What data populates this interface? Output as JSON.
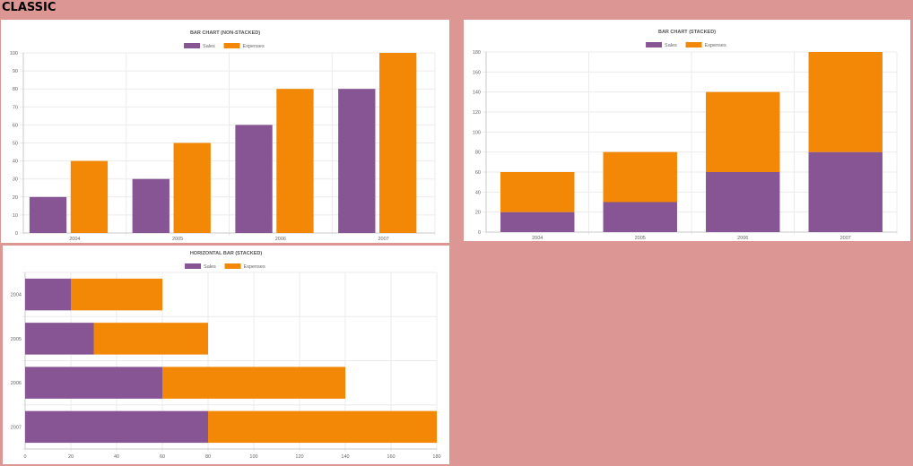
{
  "page": {
    "title": "CLASSIC"
  },
  "colors": {
    "sales": "#875594",
    "expenses": "#f28806",
    "grid": "#ebebeb",
    "axis": "#c8c8c8",
    "text": "#666666",
    "title": "#555555"
  },
  "chart_data": [
    {
      "type": "bar",
      "title": "BAR CHART (NON-STACKED)",
      "stacked": false,
      "orientation": "vertical",
      "categories": [
        "2004",
        "2005",
        "2006",
        "2007"
      ],
      "series": [
        {
          "name": "Sales",
          "values": [
            20,
            30,
            60,
            80
          ]
        },
        {
          "name": "Expenses",
          "values": [
            40,
            50,
            80,
            100
          ]
        }
      ],
      "ylim": [
        0,
        100
      ],
      "ticks": [
        0,
        10,
        20,
        30,
        40,
        50,
        60,
        70,
        80,
        90,
        100
      ],
      "legend": "top",
      "grid": true
    },
    {
      "type": "bar",
      "title": "BAR CHART (STACKED)",
      "stacked": true,
      "orientation": "vertical",
      "categories": [
        "2004",
        "2005",
        "2006",
        "2007"
      ],
      "series": [
        {
          "name": "Sales",
          "values": [
            20,
            30,
            60,
            80
          ]
        },
        {
          "name": "Expenses",
          "values": [
            40,
            50,
            80,
            100
          ]
        }
      ],
      "ylim": [
        0,
        180
      ],
      "ticks": [
        0,
        20,
        40,
        60,
        80,
        100,
        120,
        140,
        160,
        180
      ],
      "legend": "top",
      "grid": true
    },
    {
      "type": "bar",
      "title": "HORIZONTAL BAR (STACKED)",
      "stacked": true,
      "orientation": "horizontal",
      "categories": [
        "2004",
        "2005",
        "2006",
        "2007"
      ],
      "series": [
        {
          "name": "Sales",
          "values": [
            20,
            30,
            60,
            80
          ]
        },
        {
          "name": "Expenses",
          "values": [
            40,
            50,
            80,
            100
          ]
        }
      ],
      "xlim": [
        0,
        180
      ],
      "ticks": [
        0,
        20,
        40,
        60,
        80,
        100,
        120,
        140,
        160,
        180
      ],
      "legend": "top",
      "grid": true
    }
  ]
}
